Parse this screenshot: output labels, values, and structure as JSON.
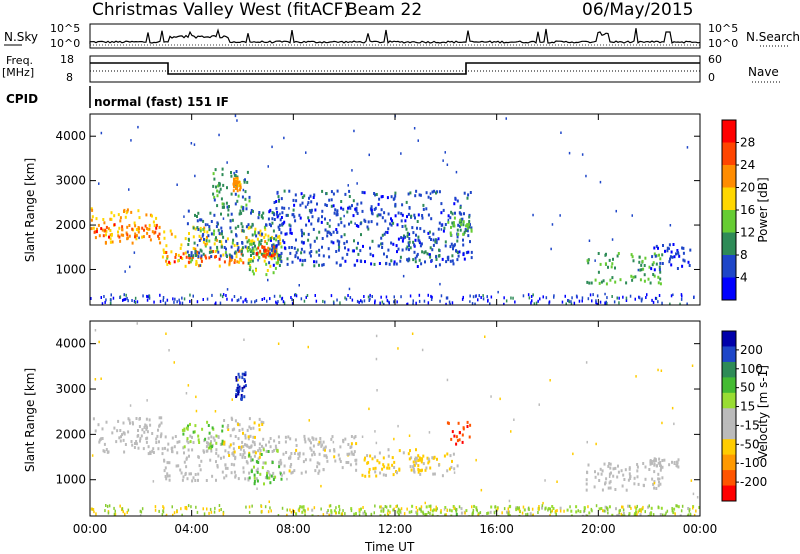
{
  "header": {
    "title": "Christmas Valley West (fitACF)",
    "beam": "Beam 22",
    "date": "06/May/2015",
    "cpid_label": "CPID",
    "cpid_text": "normal (fast) 151 IF"
  },
  "top_panels": {
    "nsky_label": "N.Sky",
    "nsky_hi": "10^5",
    "nsky_lo": "10^0",
    "nsearch_label": "N.Search",
    "freq_label": "Freq.",
    "freq_unit": "[MHz]",
    "freq_hi": "18",
    "freq_lo": "8",
    "nave_label": "Nave",
    "nave_hi": "60",
    "nave_lo": "0"
  },
  "colors": {
    "power_scale": [
      "#0000ff",
      "#1e46c8",
      "#2e8b57",
      "#66cc33",
      "#ffd700",
      "#ff8c00",
      "#ff4500",
      "#ff0000"
    ],
    "velocity_scale": [
      "#ff0000",
      "#ff5500",
      "#ff9900",
      "#ffcc00",
      "#bbbbbb",
      "#bbbbbb",
      "#99dd33",
      "#44bb33",
      "#2e8b57",
      "#1e46c8",
      "#0000aa"
    ],
    "ground_scatter": "#bbbbbb"
  },
  "chart_data": [
    {
      "type": "heatmap",
      "name": "power",
      "xlabel": "Time UT",
      "ylabel": "Slant Range [km]",
      "xlim": [
        0,
        24
      ],
      "ylim": [
        200,
        4500
      ],
      "y_ticks": [
        "1000",
        "2000",
        "3000",
        "4000"
      ],
      "x_ticks": [
        "00:00",
        "04:00",
        "08:00",
        "12:00",
        "16:00",
        "20:00",
        "00:00"
      ],
      "colorbar": {
        "label": "Power [dB]",
        "range": [
          0,
          32
        ],
        "ticks": [
          "4",
          "8",
          "12",
          "16",
          "20",
          "24",
          "28"
        ]
      },
      "regions": [
        {
          "t": [
            0,
            2.8
          ],
          "range": [
            1600,
            2400
          ],
          "value": 20
        },
        {
          "t": [
            0,
            2.8
          ],
          "range": [
            1750,
            2050
          ],
          "value": 26
        },
        {
          "t": [
            2.8,
            7.5
          ],
          "range": [
            1100,
            2000
          ],
          "value": 18
        },
        {
          "t": [
            2.8,
            6.0
          ],
          "range": [
            1150,
            1450
          ],
          "value": 26
        },
        {
          "t": [
            3.8,
            7.2
          ],
          "range": [
            1300,
            2400
          ],
          "value": 8
        },
        {
          "t": [
            4.8,
            6.3
          ],
          "range": [
            2400,
            3300
          ],
          "value": 10
        },
        {
          "t": [
            5.6,
            5.9
          ],
          "range": [
            2800,
            3100
          ],
          "value": 22
        },
        {
          "t": [
            6.2,
            7.5
          ],
          "range": [
            900,
            1700
          ],
          "value": 14
        },
        {
          "t": [
            6.5,
            7.3
          ],
          "range": [
            1300,
            1550
          ],
          "value": 26
        },
        {
          "t": [
            7.0,
            15.0
          ],
          "range": [
            1100,
            2800
          ],
          "value": 6
        },
        {
          "t": [
            12.5,
            14.5
          ],
          "range": [
            1200,
            1700
          ],
          "value": 8
        },
        {
          "t": [
            14.0,
            15.0
          ],
          "range": [
            1800,
            2200
          ],
          "value": 12
        },
        {
          "t": [
            19.5,
            22.5
          ],
          "range": [
            700,
            1400
          ],
          "value": 12
        },
        {
          "t": [
            22.0,
            23.6
          ],
          "range": [
            1000,
            1600
          ],
          "value": 5
        }
      ]
    },
    {
      "type": "heatmap",
      "name": "velocity",
      "xlabel": "Time UT",
      "ylabel": "Slant Range [km]",
      "xlim": [
        0,
        24
      ],
      "ylim": [
        200,
        4500
      ],
      "y_ticks": [
        "1000",
        "2000",
        "3000",
        "4000"
      ],
      "x_ticks": [
        "00:00",
        "04:00",
        "08:00",
        "12:00",
        "16:00",
        "20:00",
        "00:00"
      ],
      "colorbar": {
        "label": "Velocity [m s-1]",
        "range": [
          -250,
          250
        ],
        "ticks": [
          "-200",
          "-100",
          "-50",
          "-15",
          "15",
          "50",
          "100",
          "200"
        ]
      },
      "regions": [
        {
          "t": [
            0,
            2.8
          ],
          "range": [
            1600,
            2400
          ],
          "value": 0,
          "ground_scatter": true
        },
        {
          "t": [
            2.8,
            7.5
          ],
          "range": [
            1000,
            2000
          ],
          "value": 0,
          "ground_scatter": true
        },
        {
          "t": [
            3.6,
            5.2
          ],
          "range": [
            1700,
            2300
          ],
          "value": 60
        },
        {
          "t": [
            5.2,
            6.8
          ],
          "range": [
            1500,
            2400
          ],
          "value": -60
        },
        {
          "t": [
            5.7,
            6.1
          ],
          "range": [
            2800,
            3400
          ],
          "value": 200
        },
        {
          "t": [
            6.2,
            7.5
          ],
          "range": [
            900,
            1700
          ],
          "value": 70
        },
        {
          "t": [
            7.5,
            10.5
          ],
          "range": [
            1100,
            2000
          ],
          "value": -40
        },
        {
          "t": [
            10.5,
            13.5
          ],
          "range": [
            1100,
            1700
          ],
          "value": -80
        },
        {
          "t": [
            12.5,
            14.5
          ],
          "range": [
            1100,
            1600
          ],
          "value": -60
        },
        {
          "t": [
            14.0,
            15.0
          ],
          "range": [
            1800,
            2300
          ],
          "value": -200
        },
        {
          "t": [
            19.5,
            22.5
          ],
          "range": [
            800,
            1400
          ],
          "value": 0,
          "ground_scatter": true
        },
        {
          "t": [
            22.0,
            23.6
          ],
          "range": [
            1300,
            1500
          ],
          "value": 0,
          "ground_scatter": true
        },
        {
          "t": [
            8.0,
            24.0
          ],
          "range": [
            200,
            450
          ],
          "value": 40
        }
      ]
    }
  ]
}
